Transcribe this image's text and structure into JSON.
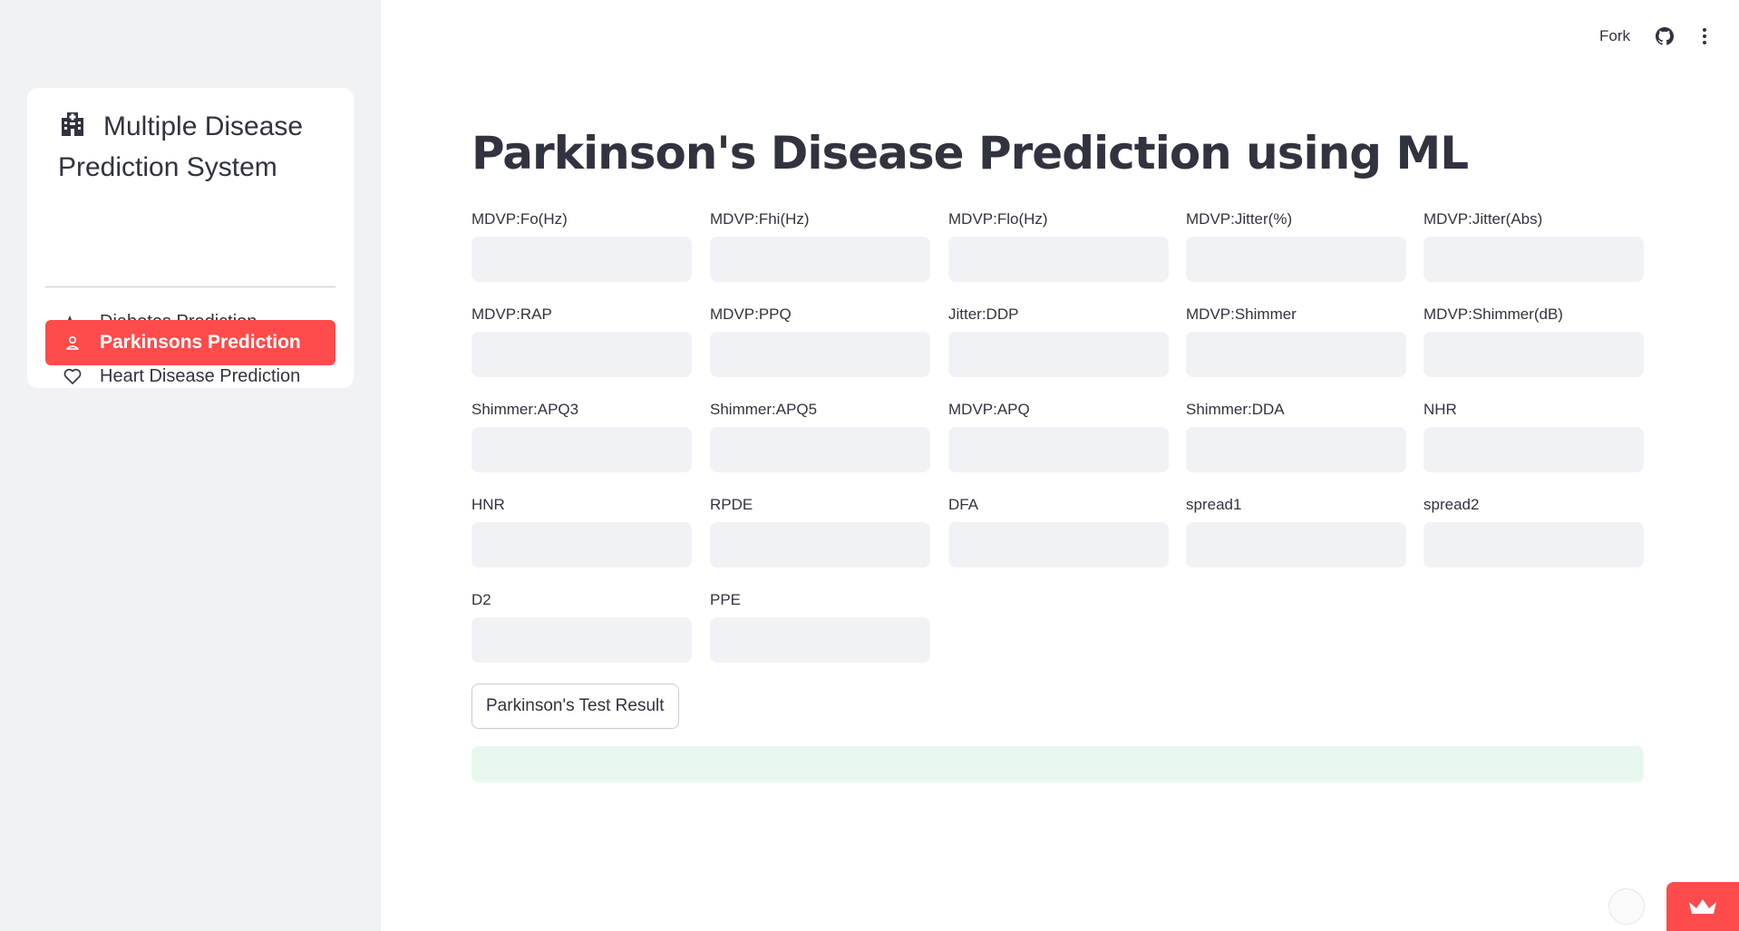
{
  "sidebar": {
    "title": "Multiple Disease Prediction System",
    "title_icon": "hospital-icon",
    "items": [
      {
        "label": "Diabetes Prediction",
        "icon": "activity-icon",
        "active": false
      },
      {
        "label": "Heart Disease Prediction",
        "icon": "heart-icon",
        "active": false
      },
      {
        "label": "Parkinsons Prediction",
        "icon": "person-icon",
        "active": true
      }
    ],
    "accent_color": "#ff4b4b"
  },
  "toolbar": {
    "fork_label": "Fork",
    "icons": [
      "github-icon",
      "more-vertical-icon"
    ]
  },
  "main": {
    "title": "Parkinson's Disease Prediction using ML",
    "fields": [
      {
        "label": "MDVP:Fo(Hz)",
        "value": ""
      },
      {
        "label": "MDVP:Fhi(Hz)",
        "value": ""
      },
      {
        "label": "MDVP:Flo(Hz)",
        "value": ""
      },
      {
        "label": "MDVP:Jitter(%)",
        "value": ""
      },
      {
        "label": "MDVP:Jitter(Abs)",
        "value": ""
      },
      {
        "label": "MDVP:RAP",
        "value": ""
      },
      {
        "label": "MDVP:PPQ",
        "value": ""
      },
      {
        "label": "Jitter:DDP",
        "value": ""
      },
      {
        "label": "MDVP:Shimmer",
        "value": ""
      },
      {
        "label": "MDVP:Shimmer(dB)",
        "value": ""
      },
      {
        "label": "Shimmer:APQ3",
        "value": ""
      },
      {
        "label": "Shimmer:APQ5",
        "value": ""
      },
      {
        "label": "MDVP:APQ",
        "value": ""
      },
      {
        "label": "Shimmer:DDA",
        "value": ""
      },
      {
        "label": "NHR",
        "value": ""
      },
      {
        "label": "HNR",
        "value": ""
      },
      {
        "label": "RPDE",
        "value": ""
      },
      {
        "label": "DFA",
        "value": ""
      },
      {
        "label": "spread1",
        "value": ""
      },
      {
        "label": "spread2",
        "value": ""
      },
      {
        "label": "D2",
        "value": ""
      },
      {
        "label": "PPE",
        "value": ""
      }
    ],
    "button_label": "Parkinson's Test Result",
    "result_text": ""
  }
}
